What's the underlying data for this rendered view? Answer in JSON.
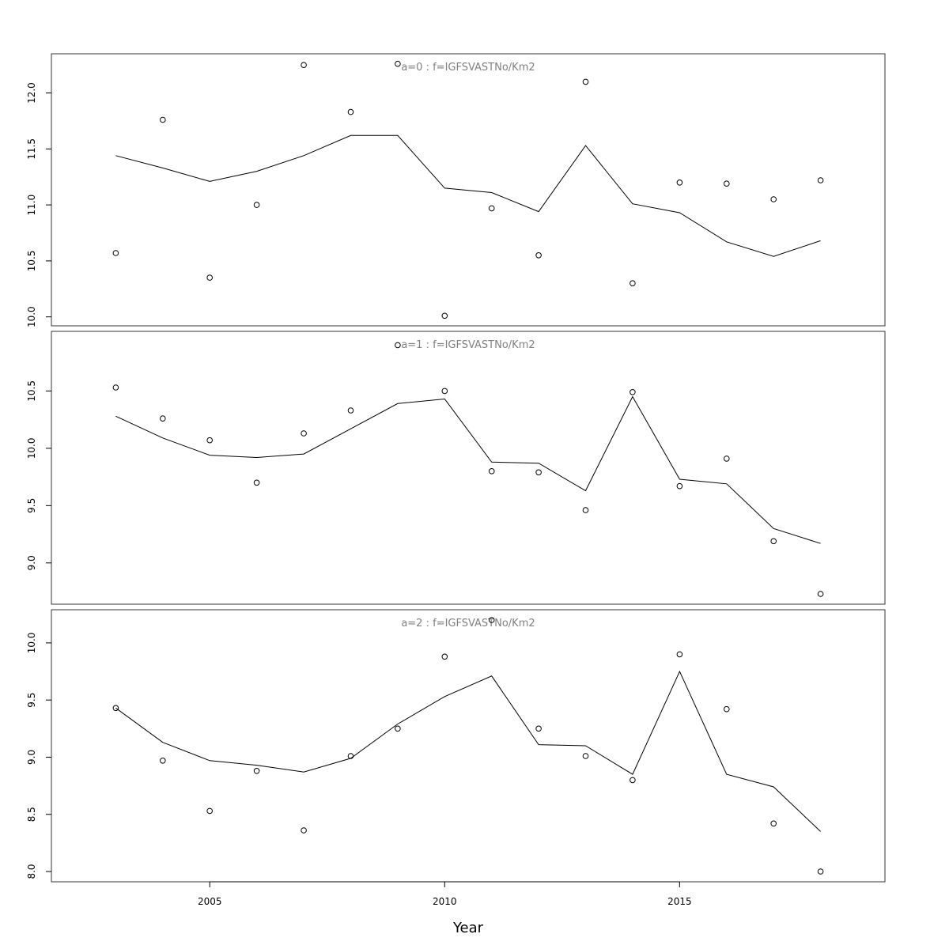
{
  "chart_data": [
    {
      "type": "scatter",
      "title": "a=0 : f=IGFSVASTNo/Km2",
      "ylim": [
        9.92,
        12.35
      ],
      "yticks": [
        "10.0",
        "10.5",
        "11.0",
        "11.5",
        "12.0"
      ],
      "x": [
        2003,
        2004,
        2005,
        2006,
        2007,
        2008,
        2009,
        2010,
        2011,
        2012,
        2013,
        2014,
        2015,
        2016,
        2017,
        2018
      ],
      "series": [
        {
          "kind": "points",
          "values": [
            10.57,
            11.76,
            10.35,
            11.0,
            12.25,
            11.83,
            12.26,
            10.01,
            10.97,
            10.55,
            12.1,
            10.3,
            11.2,
            11.19,
            11.05,
            11.22
          ]
        },
        {
          "kind": "line",
          "values": [
            11.44,
            11.33,
            11.21,
            11.3,
            11.44,
            11.62,
            11.62,
            11.15,
            11.11,
            10.94,
            11.53,
            11.01,
            10.93,
            10.67,
            10.54,
            10.68
          ]
        }
      ]
    },
    {
      "type": "scatter",
      "title": "a=1 : f=IGFSVASTNo/Km2",
      "ylim": [
        8.64,
        11.02
      ],
      "yticks": [
        "9.0",
        "9.5",
        "10.0",
        "10.5"
      ],
      "x": [
        2003,
        2004,
        2005,
        2006,
        2007,
        2008,
        2009,
        2010,
        2011,
        2012,
        2013,
        2014,
        2015,
        2016,
        2017,
        2018
      ],
      "series": [
        {
          "kind": "points",
          "values": [
            10.53,
            10.26,
            10.07,
            9.7,
            10.13,
            10.33,
            10.9,
            10.5,
            9.8,
            9.79,
            9.46,
            10.49,
            9.67,
            9.91,
            9.19,
            8.73
          ]
        },
        {
          "kind": "line",
          "values": [
            10.28,
            10.09,
            9.94,
            9.92,
            9.95,
            10.17,
            10.39,
            10.43,
            9.88,
            9.87,
            9.63,
            10.45,
            9.73,
            9.69,
            9.3,
            9.17
          ]
        }
      ]
    },
    {
      "type": "scatter",
      "title": "a=2 : f=IGFSVASTNo/Km2",
      "ylim": [
        7.91,
        10.29
      ],
      "yticks": [
        "8.0",
        "8.5",
        "9.0",
        "9.5",
        "10.0"
      ],
      "x": [
        2003,
        2004,
        2005,
        2006,
        2007,
        2008,
        2009,
        2010,
        2011,
        2012,
        2013,
        2014,
        2015,
        2016,
        2017,
        2018
      ],
      "series": [
        {
          "kind": "points",
          "values": [
            9.43,
            8.97,
            8.53,
            8.88,
            8.36,
            9.01,
            9.25,
            9.88,
            10.2,
            9.25,
            9.01,
            8.8,
            9.9,
            9.42,
            8.42,
            8.0
          ]
        },
        {
          "kind": "line",
          "values": [
            9.43,
            9.13,
            8.97,
            8.93,
            8.87,
            8.99,
            9.29,
            9.53,
            9.71,
            9.11,
            9.1,
            8.85,
            9.75,
            8.85,
            8.74,
            8.35
          ]
        }
      ]
    }
  ],
  "xaxis": {
    "label": "Year",
    "xlim": [
      2001.63,
      2019.37
    ],
    "ticks": [
      2005,
      2010,
      2015
    ],
    "tick_labels": [
      "2005",
      "2010",
      "2015"
    ]
  }
}
